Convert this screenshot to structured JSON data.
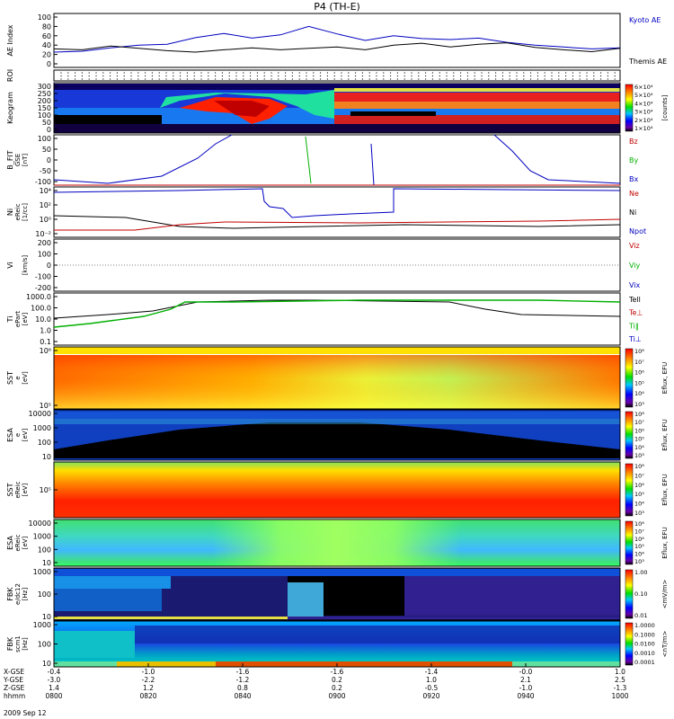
{
  "title": "P4 (TH-E)",
  "chart_data": {
    "type": "multi-panel-timeseries",
    "date_label": "2009 Sep 12",
    "x_axis": {
      "rows": [
        {
          "name": "X-GSE",
          "values": [
            "-0.4",
            "-1.0",
            "-1.6",
            "-1.6",
            "-1.4",
            "-0.0",
            "1.0"
          ]
        },
        {
          "name": "Y-GSE",
          "values": [
            "-3.0",
            "-2.2",
            "-1.2",
            "0.2",
            "1.0",
            "2.1",
            "2.5"
          ]
        },
        {
          "name": "Z-GSE",
          "values": [
            "1.4",
            "1.2",
            "0.8",
            "0.2",
            "-0.5",
            "-1.0",
            "-1.3"
          ]
        },
        {
          "name": "hhmm",
          "values": [
            "0800",
            "0820",
            "0840",
            "0900",
            "0920",
            "0940",
            "1000"
          ]
        }
      ]
    },
    "panels": [
      {
        "id": "ae",
        "ylabel": "AE Index",
        "ticks": [
          "100",
          "80",
          "60",
          "40",
          "20",
          "0"
        ],
        "ylim": [
          0,
          100
        ],
        "legend": [
          "Kyoto AE",
          "Themis AE"
        ],
        "legend_colors": [
          "#0000c0",
          "#000000"
        ],
        "series": [
          {
            "name": "Kyoto AE",
            "color": "#0000c0",
            "x": [
              0,
              0.05,
              0.1,
              0.15,
              0.2,
              0.25,
              0.3,
              0.35,
              0.4,
              0.45,
              0.5,
              0.55,
              0.6,
              0.65,
              0.7,
              0.75,
              0.8,
              0.85,
              0.9,
              0.95,
              1.0
            ],
            "y": [
              25,
              27,
              34,
              40,
              42,
              56,
              65,
              55,
              62,
              80,
              64,
              50,
              60,
              54,
              52,
              55,
              46,
              40,
              36,
              32,
              34
            ]
          },
          {
            "name": "Themis AE",
            "color": "#000000",
            "x": [
              0,
              0.05,
              0.1,
              0.15,
              0.2,
              0.25,
              0.3,
              0.35,
              0.4,
              0.45,
              0.5,
              0.55,
              0.6,
              0.65,
              0.7,
              0.75,
              0.8,
              0.85,
              0.9,
              0.95,
              1.0
            ],
            "y": [
              32,
              30,
              38,
              33,
              28,
              25,
              30,
              34,
              30,
              33,
              36,
              30,
              40,
              44,
              36,
              42,
              45,
              35,
              30,
              26,
              33
            ]
          }
        ]
      },
      {
        "id": "roi",
        "ylabel": "ROI",
        "ticks": [],
        "legend": [],
        "legend_colors": []
      },
      {
        "id": "keogram",
        "ylabel": "Keogram",
        "ticks": [
          "300",
          "250",
          "200",
          "150",
          "100",
          "50",
          "0"
        ],
        "colorbar": {
          "labels": [
            "6×10⁴",
            "5×10⁴",
            "4×10⁴",
            "3×10⁴",
            "2×10⁴",
            "1×10⁴"
          ],
          "unit": "[counts]"
        }
      },
      {
        "id": "bfit",
        "ylabel": "B_FIT",
        "ylabel2": "GSE",
        "unit": "[nT]",
        "ticks": [
          "100",
          "50",
          "0",
          "-50",
          "-100"
        ],
        "ylim": [
          -100,
          100
        ],
        "legend": [
          "Bz",
          "By",
          "Bx"
        ],
        "legend_colors": [
          "#c00000",
          "#00b000",
          "#0000c0"
        ]
      },
      {
        "id": "ni",
        "ylabel": "Ni",
        "ylabel2": "eReic",
        "unit": "[1/cc]",
        "ticks": [
          "10⁴",
          "10²",
          "10⁰",
          "10⁻²"
        ],
        "legend": [
          "Ne",
          "Ni",
          "Npot"
        ],
        "legend_colors": [
          "#c00000",
          "#000000",
          "#0000c0"
        ]
      },
      {
        "id": "vi",
        "ylabel": "Vi",
        "unit": "[km/s]",
        "ticks": [
          "200",
          "100",
          "0",
          "-100",
          "-200"
        ],
        "ylim": [
          -200,
          200
        ],
        "legend": [
          "Viz",
          "Viy",
          "Vix"
        ],
        "legend_colors": [
          "#c00000",
          "#00b000",
          "#0000c0"
        ]
      },
      {
        "id": "ti",
        "ylabel": "Ti",
        "ylabel2": "ePart",
        "unit": "[eV]",
        "ticks": [
          "1000.0",
          "100.0",
          "10.0",
          "1.0",
          "0.1"
        ],
        "legend": [
          "Tell",
          "Te⊥",
          "Ti‖",
          "Ti⊥"
        ],
        "legend_colors": [
          "#000000",
          "#c00000",
          "#00b000",
          "#0000c0"
        ]
      },
      {
        "id": "sst_e",
        "ylabel": "SST",
        "ylabel2": "e",
        "unit": "[eV]",
        "ticks": [
          "10⁶",
          "10⁵"
        ],
        "colorbar": {
          "labels": [
            "10⁸",
            "10⁷",
            "10⁶",
            "10⁵",
            "10⁴",
            "10³"
          ],
          "unit": "Eflux, EFU"
        }
      },
      {
        "id": "esa_e",
        "ylabel": "ESA",
        "ylabel2": "e",
        "unit": "[eV]",
        "ticks": [
          "10000",
          "1000",
          "100",
          "10"
        ],
        "colorbar": {
          "labels": [
            "10⁸",
            "10⁷",
            "10⁶",
            "10⁵",
            "10⁴",
            "10³"
          ],
          "unit": "Eflux, EFU"
        }
      },
      {
        "id": "sst_i",
        "ylabel": "SST",
        "ylabel2": "eReic",
        "unit": "[eV]",
        "ticks": [
          "10⁵"
        ],
        "colorbar": {
          "labels": [
            "10⁸",
            "10⁷",
            "10⁶",
            "10⁵",
            "10⁴",
            "10³"
          ],
          "unit": "Eflux, EFU"
        }
      },
      {
        "id": "esa_i",
        "ylabel": "ESA",
        "ylabel2": "eReic",
        "unit": "[eV]",
        "ticks": [
          "10000",
          "1000",
          "100",
          "10"
        ],
        "colorbar": {
          "labels": [
            "10⁸",
            "10⁷",
            "10⁶",
            "10⁵",
            "10⁴",
            "10³"
          ],
          "unit": "Eflux, EFU"
        }
      },
      {
        "id": "fbk_e",
        "ylabel": "FBK",
        "ylabel2": "e/dc12",
        "unit": "[Hz]",
        "ticks": [
          "1000",
          "100",
          "10"
        ],
        "colorbar": {
          "labels": [
            "1.00",
            "0.10",
            "0.01"
          ],
          "unit": "<mV/m>"
        }
      },
      {
        "id": "fbk_b",
        "ylabel": "FBK",
        "ylabel2": "scm1",
        "unit": "[Hz]",
        "ticks": [
          "1000",
          "100",
          "10"
        ],
        "colorbar": {
          "labels": [
            "1.0000",
            "0.1000",
            "0.0100",
            "0.0010",
            "0.0001"
          ],
          "unit": "<nT/m>"
        }
      }
    ]
  }
}
